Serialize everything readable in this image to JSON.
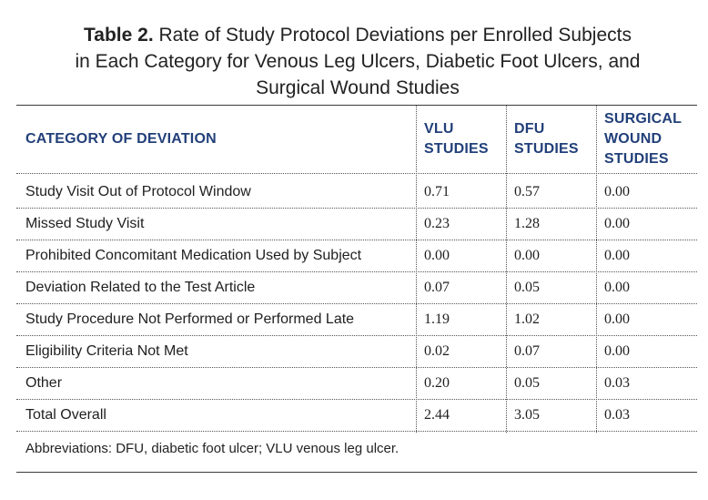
{
  "caption": {
    "label": "Table 2.",
    "line1": "Rate of Study Protocol Deviations per Enrolled Subjects",
    "line2": "in Each Category for Venous Leg Ulcers, Diabetic Foot Ulcers, and",
    "line3": "Surgical Wound Studies"
  },
  "table": {
    "headers": [
      {
        "lines": [
          "CATEGORY OF DEVIATION"
        ]
      },
      {
        "lines": [
          "VLU",
          "STUDIES"
        ]
      },
      {
        "lines": [
          "DFU",
          "STUDIES"
        ]
      },
      {
        "lines": [
          "SURGICAL",
          "WOUND",
          "STUDIES"
        ]
      }
    ],
    "rows": [
      {
        "category": "Study Visit Out of Protocol Window",
        "vlu": "0.71",
        "dfu": "0.57",
        "surgical": "0.00"
      },
      {
        "category": "Missed Study Visit",
        "vlu": "0.23",
        "dfu": "1.28",
        "surgical": "0.00"
      },
      {
        "category": "Prohibited Concomitant Medication Used by Subject",
        "vlu": "0.00",
        "dfu": "0.00",
        "surgical": "0.00"
      },
      {
        "category": "Deviation Related to the Test Article",
        "vlu": "0.07",
        "dfu": "0.05",
        "surgical": "0.00"
      },
      {
        "category": "Study Procedure Not Performed or Performed Late",
        "vlu": "1.19",
        "dfu": "1.02",
        "surgical": "0.00"
      },
      {
        "category": "Eligibility Criteria Not Met",
        "vlu": "0.02",
        "dfu": "0.07",
        "surgical": "0.00"
      },
      {
        "category": "Other",
        "vlu": "0.20",
        "dfu": "0.05",
        "surgical": "0.03"
      },
      {
        "category": "Total Overall",
        "vlu": "2.44",
        "dfu": "3.05",
        "surgical": "0.03"
      }
    ]
  },
  "footnote": "Abbreviations: DFU, diabetic foot ulcer; VLU venous leg ulcer."
}
